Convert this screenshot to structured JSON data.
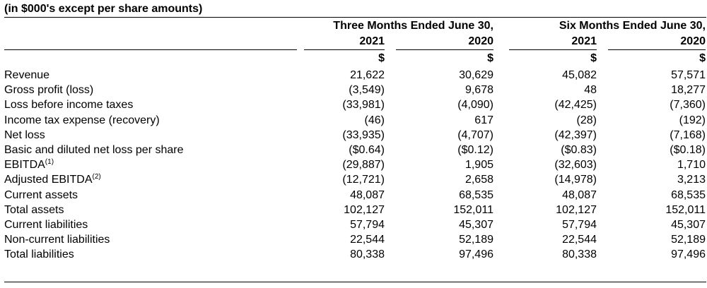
{
  "caption": "(in $000's except per share amounts)",
  "headers": {
    "three_months": "Three Months Ended June 30,",
    "six_months": "Six Months Ended June 30,",
    "years": [
      "2021",
      "2020",
      "2021",
      "2020"
    ],
    "currency": [
      "$",
      "$",
      "$",
      "$"
    ]
  },
  "rows": [
    {
      "label": "Revenue",
      "sup": "",
      "values": [
        "21,622",
        "30,629",
        "45,082",
        "57,571"
      ]
    },
    {
      "label": "Gross profit (loss)",
      "sup": "",
      "values": [
        "(3,549)",
        "9,678",
        "48",
        "18,277"
      ]
    },
    {
      "label": "Loss before income taxes",
      "sup": "",
      "values": [
        "(33,981)",
        "(4,090)",
        "(42,425)",
        "(7,360)"
      ]
    },
    {
      "label": "Income tax expense (recovery)",
      "sup": "",
      "values": [
        "(46)",
        "617",
        "(28)",
        "(192)"
      ]
    },
    {
      "label": "Net loss",
      "sup": "",
      "values": [
        "(33,935)",
        "(4,707)",
        "(42,397)",
        "(7,168)"
      ]
    },
    {
      "label": "Basic and diluted net loss per share",
      "sup": "",
      "values": [
        "($0.64)",
        "($0.12)",
        "($0.83)",
        "($0.18)"
      ]
    },
    {
      "label": "EBITDA",
      "sup": "(1)",
      "values": [
        "(29,887)",
        "1,905",
        "(32,603)",
        "1,710"
      ]
    },
    {
      "label": "Adjusted EBITDA",
      "sup": "(2)",
      "values": [
        "(12,721)",
        "2,658",
        "(14,978)",
        "3,213"
      ]
    },
    {
      "label": "Current assets",
      "sup": "",
      "values": [
        "48,087",
        "68,535",
        "48,087",
        "68,535"
      ]
    },
    {
      "label": "Total assets",
      "sup": "",
      "values": [
        "102,127",
        "152,011",
        "102,127",
        "152,011"
      ]
    },
    {
      "label": "Current liabilities",
      "sup": "",
      "values": [
        "57,794",
        "45,307",
        "57,794",
        "45,307"
      ]
    },
    {
      "label": "Non-current liabilities",
      "sup": "",
      "values": [
        "22,544",
        "52,189",
        "22,544",
        "52,189"
      ]
    },
    {
      "label": "Total liabilities",
      "sup": "",
      "values": [
        "80,338",
        "97,496",
        "80,338",
        "97,496"
      ]
    }
  ]
}
